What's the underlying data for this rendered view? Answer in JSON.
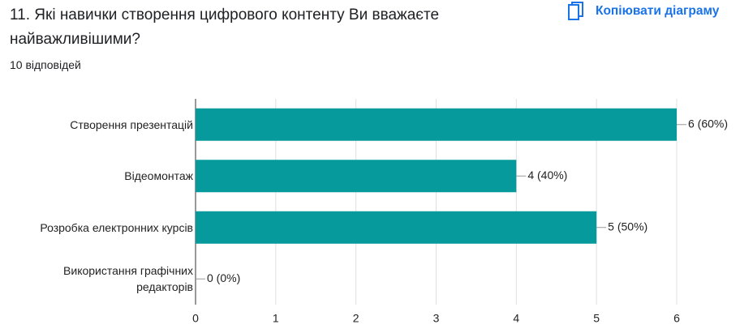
{
  "header": {
    "title": "11. Які навички створення цифрового контенту Ви вважаєте найважливішими?",
    "responses": "10 відповідей",
    "copy_button": "Копіювати діаграму"
  },
  "chart_data": {
    "type": "bar",
    "orientation": "horizontal",
    "categories": [
      "Створення презентацій",
      "Відеомонтаж",
      "Розробка електронних курсів",
      "Використання графічних редакторів"
    ],
    "values": [
      6,
      4,
      5,
      0
    ],
    "value_labels": [
      "6 (60%)",
      "4 (40%)",
      "5 (50%)",
      "0 (0%)"
    ],
    "color": "#079a9c",
    "xlim": [
      0,
      6
    ],
    "xticks": [
      0,
      1,
      2,
      3,
      4,
      5,
      6
    ],
    "grid": true
  }
}
